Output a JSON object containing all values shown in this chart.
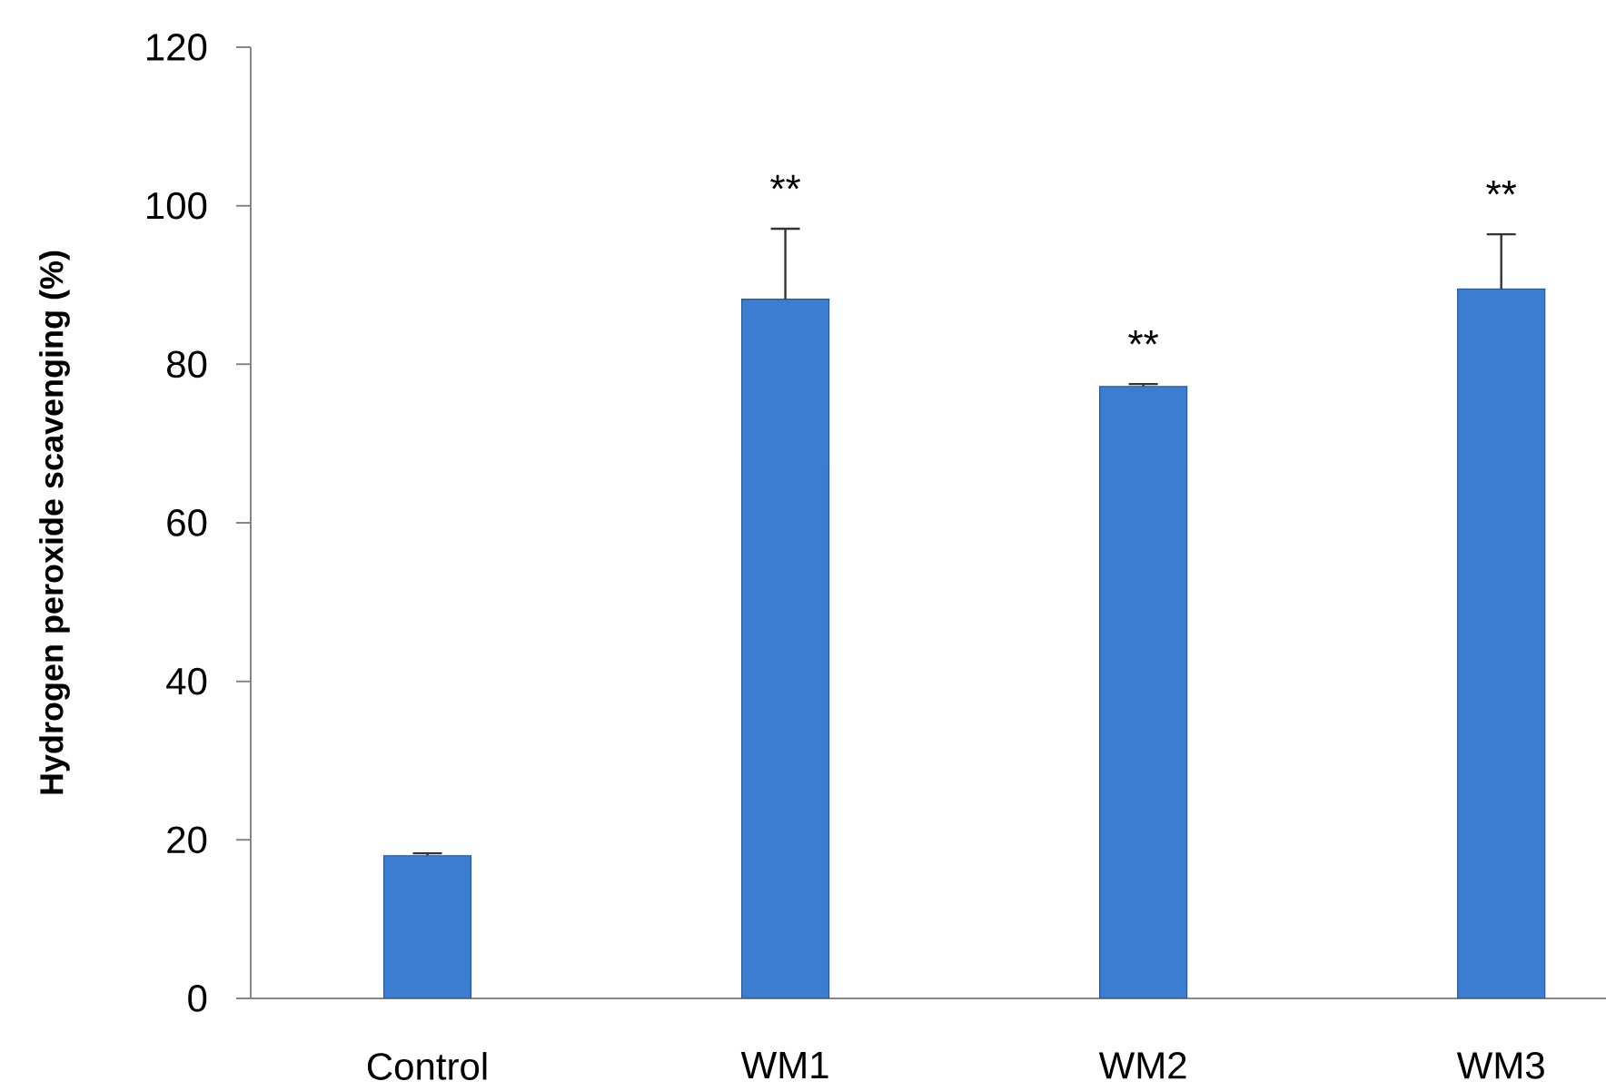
{
  "chart_data": {
    "type": "bar",
    "ylabel": "Hydrogen peroxide scavenging (%)",
    "categories": [
      "Control",
      "WM1",
      "WM2",
      "WM3"
    ],
    "values": [
      18.0,
      88.2,
      77.2,
      89.5
    ],
    "errors": [
      [
        18.0,
        18.3
      ],
      [
        88.2,
        97.1
      ],
      [
        77.2,
        77.5
      ],
      [
        89.5,
        96.4
      ]
    ],
    "color": "#3b7dd1",
    "ylim": [
      0,
      120
    ],
    "yticks": [
      0,
      20,
      40,
      60,
      80,
      100,
      120
    ],
    "annotations": [
      {
        "text": "**",
        "x": "WM1",
        "y": 97.1
      },
      {
        "text": "**",
        "x": "WM2",
        "y": 77.5
      },
      {
        "text": "**",
        "x": "WM3",
        "y": 96.4
      }
    ]
  }
}
